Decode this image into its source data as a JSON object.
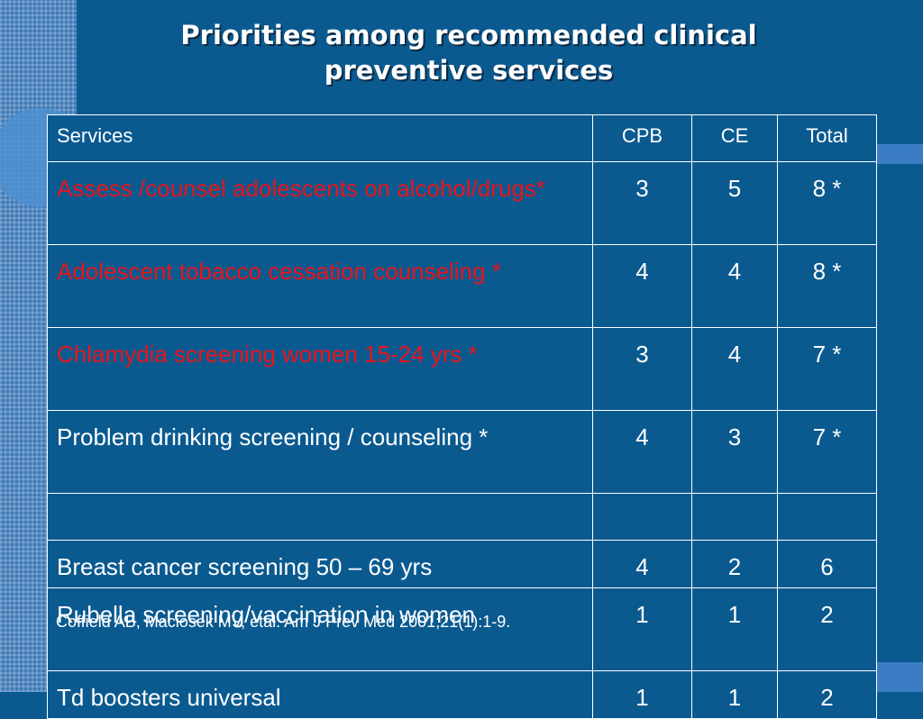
{
  "slide": {
    "title_line1": "Priorities among recommended clinical",
    "title_line2": "preventive services",
    "colors": {
      "background": "#0a5a90",
      "highlight_text": "#e8141c",
      "normal_text": "#ffffff"
    }
  },
  "table": {
    "headers": [
      "Services",
      "CPB",
      "CE",
      "Total"
    ],
    "rows": [
      {
        "service": "Assess /counsel adolescents on alcohol/drugs*",
        "cpb": "3",
        "ce": "5",
        "total": "8 *",
        "highlight": true
      },
      {
        "service": "Adolescent tobacco cessation counseling *",
        "cpb": "4",
        "ce": "4",
        "total": "8 *",
        "highlight": true
      },
      {
        "service": "Chlamydia screening women 15-24 yrs *",
        "cpb": "3",
        "ce": "4",
        "total": "7 *",
        "highlight": true
      },
      {
        "service": "Problem drinking screening / counseling *",
        "cpb": "4",
        "ce": "3",
        "total": "7 *",
        "highlight": false
      },
      {
        "service": "",
        "cpb": "",
        "ce": "",
        "total": "",
        "highlight": false
      },
      {
        "service": "Breast cancer screening 50 – 69 yrs",
        "cpb": "4",
        "ce": "2",
        "total": "6",
        "highlight": false
      },
      {
        "service": "Rubella screening/vaccination in women",
        "cpb": "1",
        "ce": "1",
        "total": "2",
        "highlight": false
      },
      {
        "service": "Td boosters universal",
        "cpb": "1",
        "ce": "1",
        "total": "2",
        "highlight": false
      }
    ]
  },
  "citation": "Coffield AB, Maciosek MV, etal. Am J Prev Med 2001;21(1):1-9."
}
